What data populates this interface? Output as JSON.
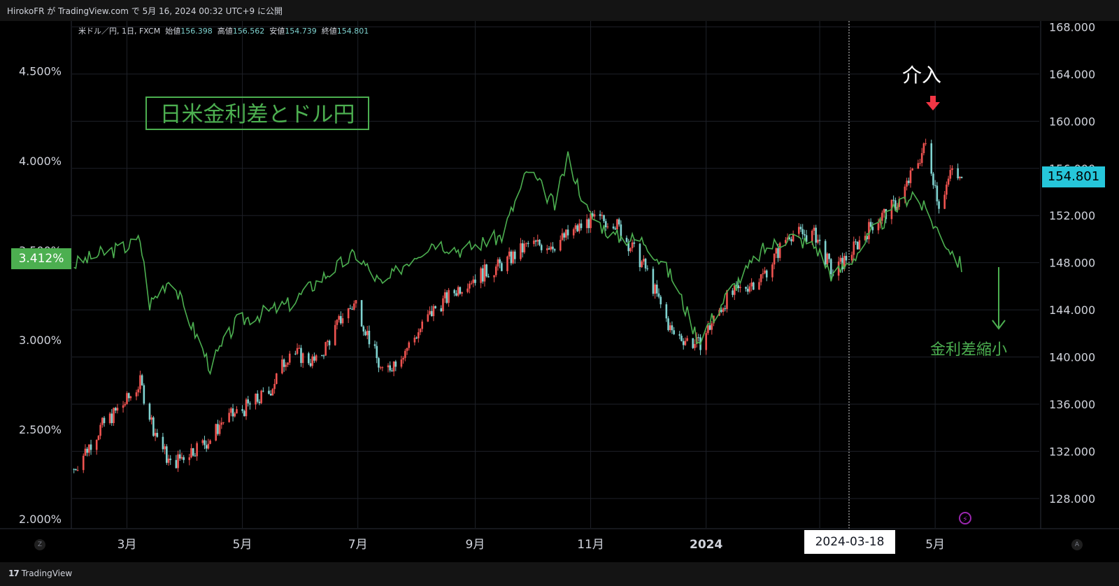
{
  "header": {
    "publish_info": "HirokoFR が TradingView.com で 5月 16, 2024 00:32 UTC+9 に公開"
  },
  "legend": {
    "symbol": "米ドル／円, 1日, FXCM",
    "open_label": "始値",
    "open": "156.398",
    "high_label": "高値",
    "high": "156.562",
    "low_label": "安値",
    "low": "154.739",
    "close_label": "終値",
    "close": "154.801"
  },
  "annotations": {
    "title": "日米金利差とドル円",
    "intervention": "介入",
    "spread_narrowing": "金利差縮小"
  },
  "crosshair": {
    "date": "2024-03-18"
  },
  "current": {
    "price_label": "154.801",
    "rate_label": "3.412%"
  },
  "corner": {
    "left": "Z",
    "right": "A"
  },
  "footer": {
    "brand": "TradingView",
    "logo_text": "17"
  },
  "colors": {
    "background": "#000000",
    "up_candle": "#ef5350",
    "down_candle": "#7fd3d0",
    "spread_line": "#4caf50",
    "price_badge": "#26c6da",
    "arrow": "#f23645",
    "grid": "#1e2128"
  },
  "chart_data": {
    "type": "line",
    "x_ticks": [
      "3月",
      "5月",
      "7月",
      "9月",
      "11月",
      "2024",
      "3月",
      "5月"
    ],
    "left_axis": {
      "ticks": [
        "2.000%",
        "2.500%",
        "3.000%",
        "3.500%",
        "4.000%",
        "4.500%"
      ],
      "range": [
        1.95,
        4.78
      ]
    },
    "right_axis": {
      "ticks": [
        "128.000",
        "132.000",
        "136.000",
        "140.000",
        "144.000",
        "148.000",
        "152.000",
        "156.000",
        "160.000",
        "164.000",
        "168.000"
      ],
      "range": [
        125.5,
        168.5
      ]
    },
    "series": [
      {
        "name": "米ドル／円",
        "type": "candlestick",
        "axis": "right",
        "points": [
          [
            "2023-02-01",
            130.5
          ],
          [
            "2023-02-15",
            134.0
          ],
          [
            "2023-03-01",
            136.3
          ],
          [
            "2023-03-08",
            137.8
          ],
          [
            "2023-03-15",
            134.0
          ],
          [
            "2023-03-24",
            130.8
          ],
          [
            "2023-04-03",
            132.0
          ],
          [
            "2023-04-14",
            133.0
          ],
          [
            "2023-04-20",
            134.5
          ],
          [
            "2023-05-01",
            135.5
          ],
          [
            "2023-05-15",
            137.0
          ],
          [
            "2023-05-26",
            140.5
          ],
          [
            "2023-06-09",
            139.5
          ],
          [
            "2023-06-23",
            143.5
          ],
          [
            "2023-06-30",
            144.6
          ],
          [
            "2023-07-14",
            138.5
          ],
          [
            "2023-07-28",
            141.0
          ],
          [
            "2023-08-10",
            144.0
          ],
          [
            "2023-08-28",
            146.5
          ],
          [
            "2023-09-15",
            147.8
          ],
          [
            "2023-09-29",
            149.5
          ],
          [
            "2023-10-13",
            149.6
          ],
          [
            "2023-10-31",
            151.5
          ],
          [
            "2023-11-13",
            151.6
          ],
          [
            "2023-11-30",
            147.5
          ],
          [
            "2023-12-14",
            142.0
          ],
          [
            "2023-12-28",
            141.0
          ],
          [
            "2024-01-12",
            145.0
          ],
          [
            "2024-01-31",
            146.9
          ],
          [
            "2024-02-14",
            150.5
          ],
          [
            "2024-02-28",
            150.3
          ],
          [
            "2024-03-08",
            147.0
          ],
          [
            "2024-03-18",
            149.0
          ],
          [
            "2024-03-29",
            151.3
          ],
          [
            "2024-04-12",
            153.2
          ],
          [
            "2024-04-26",
            158.0
          ],
          [
            "2024-04-29",
            156.0
          ],
          [
            "2024-05-03",
            153.0
          ],
          [
            "2024-05-10",
            155.8
          ],
          [
            "2024-05-15",
            154.8
          ]
        ]
      },
      {
        "name": "日米金利差",
        "type": "line",
        "axis": "left",
        "points": [
          [
            "2023-02-01",
            3.42
          ],
          [
            "2023-02-15",
            3.48
          ],
          [
            "2023-03-01",
            3.52
          ],
          [
            "2023-03-08",
            3.56
          ],
          [
            "2023-03-13",
            3.2
          ],
          [
            "2023-03-24",
            3.35
          ],
          [
            "2023-04-14",
            2.85
          ],
          [
            "2023-04-28",
            3.1
          ],
          [
            "2023-05-26",
            3.2
          ],
          [
            "2023-06-16",
            3.38
          ],
          [
            "2023-06-30",
            3.48
          ],
          [
            "2023-07-14",
            3.3
          ],
          [
            "2023-07-28",
            3.45
          ],
          [
            "2023-08-10",
            3.55
          ],
          [
            "2023-08-25",
            3.5
          ],
          [
            "2023-09-15",
            3.58
          ],
          [
            "2023-09-29",
            3.95
          ],
          [
            "2023-10-13",
            3.75
          ],
          [
            "2023-10-20",
            4.02
          ],
          [
            "2023-10-31",
            3.7
          ],
          [
            "2023-11-13",
            3.58
          ],
          [
            "2023-11-30",
            3.55
          ],
          [
            "2023-12-14",
            3.35
          ],
          [
            "2023-12-28",
            3.0
          ],
          [
            "2024-01-12",
            3.25
          ],
          [
            "2024-01-31",
            3.5
          ],
          [
            "2024-02-14",
            3.58
          ],
          [
            "2024-02-28",
            3.52
          ],
          [
            "2024-03-08",
            3.35
          ],
          [
            "2024-03-18",
            3.45
          ],
          [
            "2024-03-29",
            3.6
          ],
          [
            "2024-04-12",
            3.75
          ],
          [
            "2024-04-19",
            3.82
          ],
          [
            "2024-04-26",
            3.72
          ],
          [
            "2024-05-03",
            3.6
          ],
          [
            "2024-05-15",
            3.41
          ]
        ]
      }
    ],
    "grid": true
  }
}
